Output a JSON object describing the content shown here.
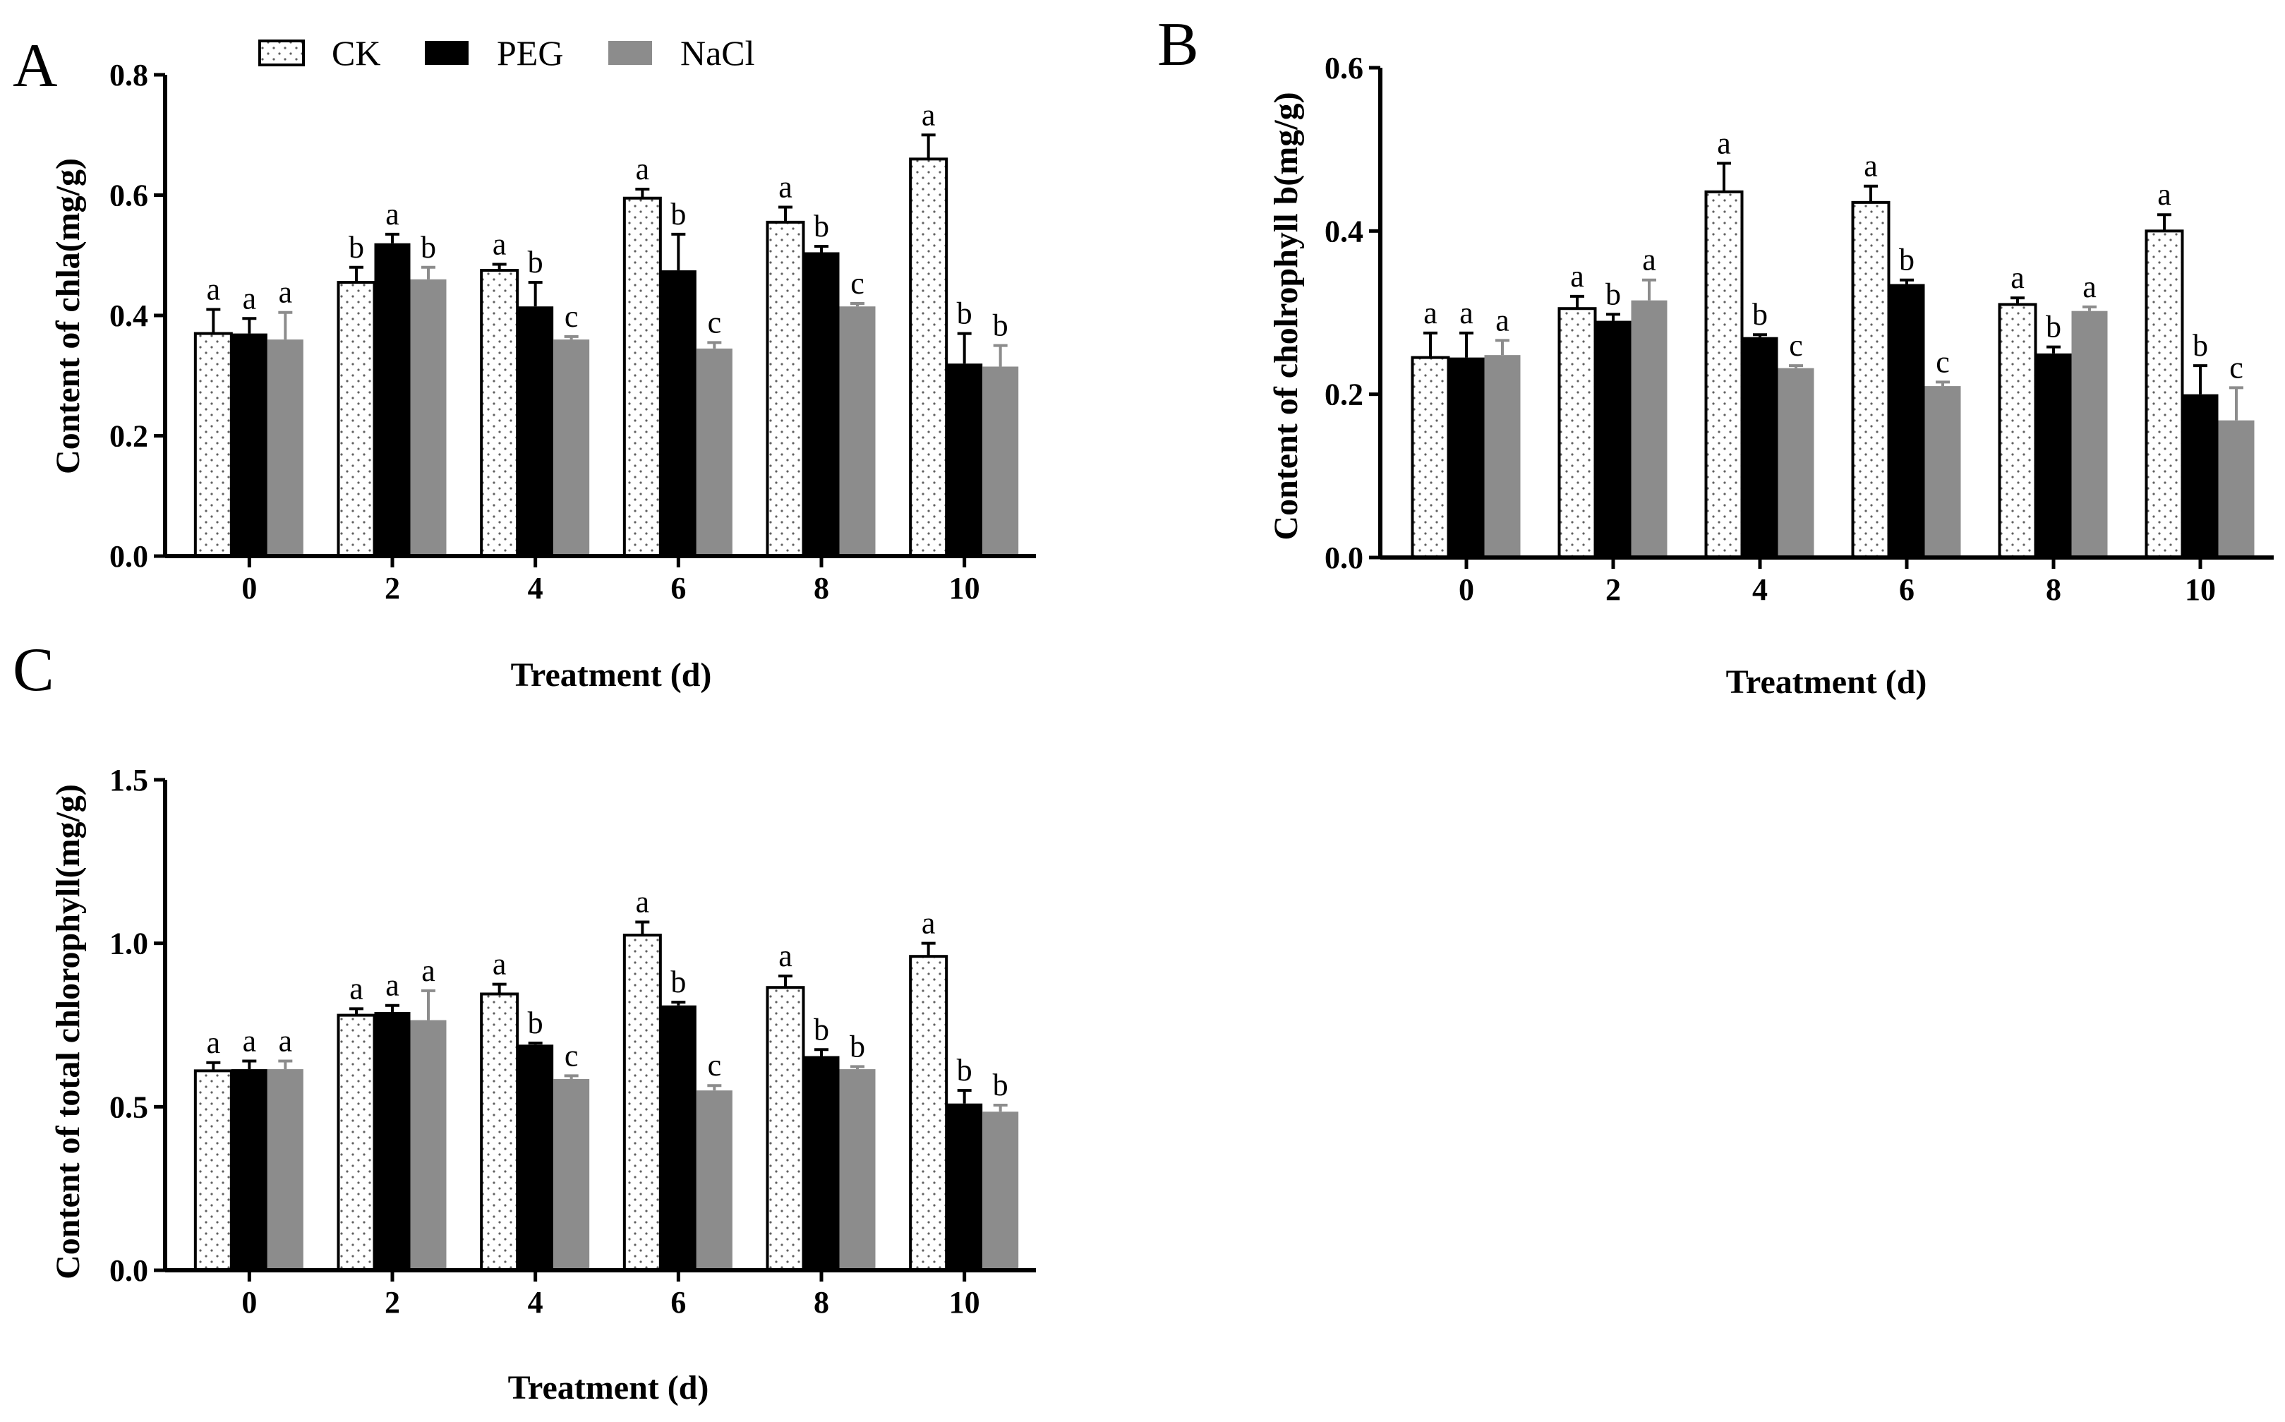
{
  "colors": {
    "ck": "#ffffff",
    "peg": "#000000",
    "nacl": "#8c8c8c",
    "axis": "#000000",
    "dots": "#606060"
  },
  "legend": [
    {
      "key": "ck",
      "label": "CK"
    },
    {
      "key": "peg",
      "label": "PEG"
    },
    {
      "key": "nacl",
      "label": "NaCl"
    }
  ],
  "chart_data": [
    {
      "panel": "A",
      "type": "bar",
      "title": "",
      "xlabel": "Treatment (d)",
      "ylabel": "Content of chla(mg/g)",
      "ylim": [
        0,
        0.8
      ],
      "yticks": [
        "0.0",
        "0.2",
        "0.4",
        "0.6",
        "0.8"
      ],
      "categories": [
        "0",
        "2",
        "4",
        "6",
        "8",
        "10"
      ],
      "series": [
        {
          "name": "CK",
          "values": [
            0.37,
            0.455,
            0.475,
            0.595,
            0.555,
            0.66
          ],
          "errors": [
            0.04,
            0.025,
            0.01,
            0.015,
            0.025,
            0.04
          ],
          "letters": [
            "a",
            "b",
            "a",
            "a",
            "a",
            "a"
          ]
        },
        {
          "name": "PEG",
          "values": [
            0.37,
            0.52,
            0.415,
            0.475,
            0.505,
            0.32
          ],
          "errors": [
            0.025,
            0.015,
            0.04,
            0.06,
            0.01,
            0.05
          ],
          "letters": [
            "a",
            "a",
            "b",
            "b",
            "b",
            "b"
          ]
        },
        {
          "name": "NaCl",
          "values": [
            0.36,
            0.46,
            0.36,
            0.345,
            0.415,
            0.315
          ],
          "errors": [
            0.045,
            0.02,
            0.005,
            0.01,
            0.005,
            0.035
          ],
          "letters": [
            "a",
            "b",
            "c",
            "c",
            "c",
            "b"
          ]
        }
      ]
    },
    {
      "panel": "B",
      "type": "bar",
      "title": "",
      "xlabel": "Treatment (d)",
      "ylabel": "Content of cholrophyll b(mg/g)",
      "ylim": [
        0,
        0.6
      ],
      "yticks": [
        "0.0",
        "0.2",
        "0.4",
        "0.6"
      ],
      "categories": [
        "0",
        "2",
        "4",
        "6",
        "8",
        "10"
      ],
      "series": [
        {
          "name": "CK",
          "values": [
            0.245,
            0.305,
            0.448,
            0.435,
            0.31,
            0.4
          ],
          "errors": [
            0.03,
            0.015,
            0.035,
            0.02,
            0.008,
            0.02
          ],
          "letters": [
            "a",
            "a",
            "a",
            "a",
            "a",
            "a"
          ]
        },
        {
          "name": "PEG",
          "values": [
            0.245,
            0.29,
            0.27,
            0.335,
            0.25,
            0.2
          ],
          "errors": [
            0.03,
            0.008,
            0.003,
            0.005,
            0.008,
            0.035
          ],
          "letters": [
            "a",
            "b",
            "b",
            "b",
            "b",
            "b"
          ]
        },
        {
          "name": "NaCl",
          "values": [
            0.248,
            0.315,
            0.232,
            0.21,
            0.302,
            0.168
          ],
          "errors": [
            0.018,
            0.025,
            0.003,
            0.005,
            0.005,
            0.04
          ],
          "letters": [
            "a",
            "a",
            "c",
            "c",
            "a",
            "c"
          ]
        }
      ]
    },
    {
      "panel": "C",
      "type": "bar",
      "title": "",
      "xlabel": "Treatment (d)",
      "ylabel": "Content of total chlorophyll(mg/g)",
      "ylim": [
        0,
        1.5
      ],
      "yticks": [
        "0.0",
        "0.5",
        "1.0",
        "1.5"
      ],
      "categories": [
        "0",
        "2",
        "4",
        "6",
        "8",
        "10"
      ],
      "series": [
        {
          "name": "CK",
          "values": [
            0.61,
            0.78,
            0.845,
            1.025,
            0.865,
            0.96
          ],
          "errors": [
            0.025,
            0.02,
            0.03,
            0.04,
            0.035,
            0.04
          ],
          "letters": [
            "a",
            "a",
            "a",
            "a",
            "a",
            "a"
          ]
        },
        {
          "name": "PEG",
          "values": [
            0.615,
            0.79,
            0.69,
            0.81,
            0.655,
            0.51
          ],
          "errors": [
            0.025,
            0.02,
            0.005,
            0.01,
            0.02,
            0.04
          ],
          "letters": [
            "a",
            "a",
            "b",
            "b",
            "b",
            "b"
          ]
        },
        {
          "name": "NaCl",
          "values": [
            0.615,
            0.765,
            0.585,
            0.55,
            0.615,
            0.485
          ],
          "errors": [
            0.025,
            0.09,
            0.01,
            0.015,
            0.008,
            0.02
          ],
          "letters": [
            "a",
            "a",
            "c",
            "c",
            "b",
            "b"
          ]
        }
      ]
    }
  ]
}
